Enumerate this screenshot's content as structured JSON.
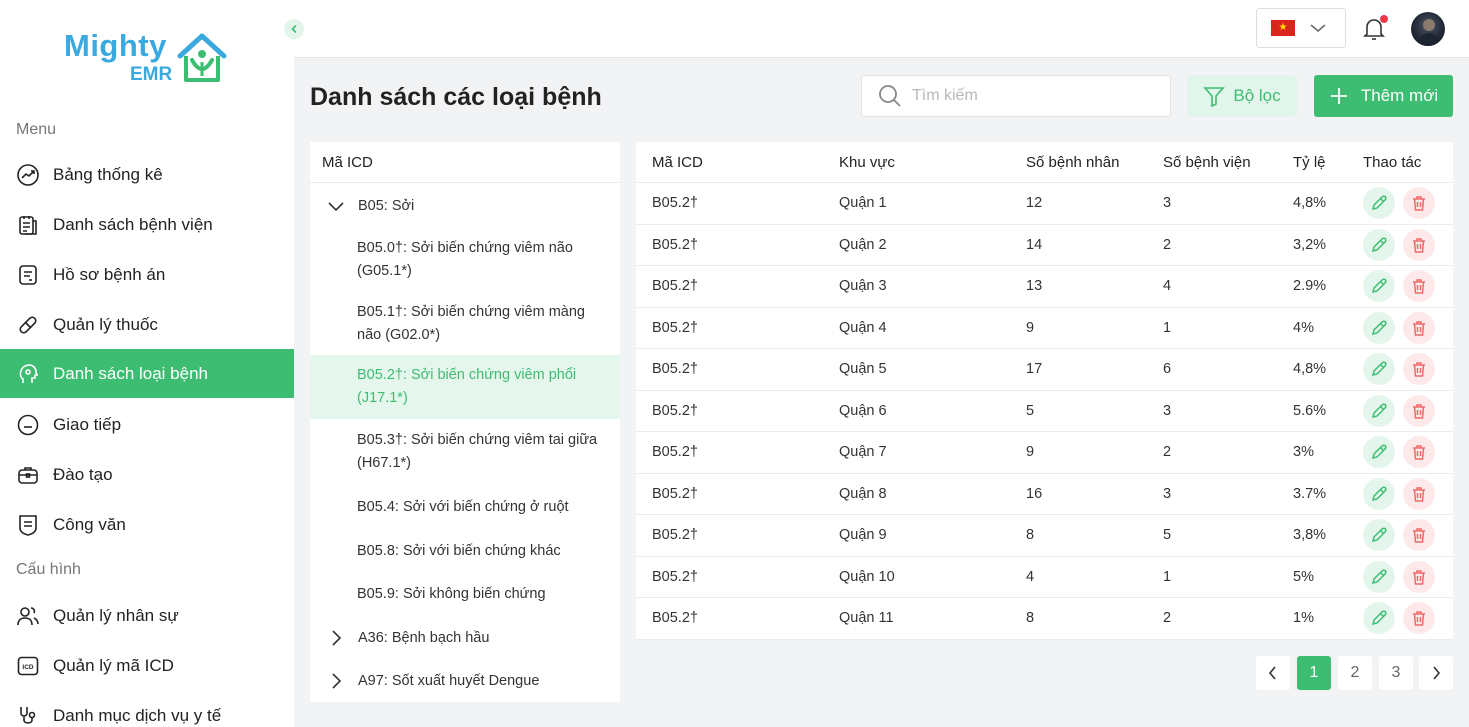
{
  "brand": {
    "name_top": "Mighty",
    "name_bottom": "EMR",
    "primary_color": "#3dbd72",
    "logo_color": "#3aa9e0"
  },
  "sidebar": {
    "menu_label": "Menu",
    "menu_items": [
      {
        "label": "Bảng thống kê",
        "icon": "chart-trend-icon"
      },
      {
        "label": "Danh sách bệnh viện",
        "icon": "hospital-list-icon"
      },
      {
        "label": "Hồ sơ bệnh án",
        "icon": "medical-record-icon"
      },
      {
        "label": "Quản lý thuốc",
        "icon": "pill-icon"
      },
      {
        "label": "Danh sách loại bệnh",
        "icon": "disease-head-icon",
        "active": true
      },
      {
        "label": "Giao tiếp",
        "icon": "chat-icon"
      },
      {
        "label": "Đào tạo",
        "icon": "briefcase-icon"
      },
      {
        "label": "Công văn",
        "icon": "document-shield-icon"
      }
    ],
    "config_label": "Cấu hình",
    "config_items": [
      {
        "label": "Quản lý nhân sự",
        "icon": "users-icon"
      },
      {
        "label": "Quản lý mã ICD",
        "icon": "icd-icon",
        "icon_text": "ICD"
      },
      {
        "label": "Danh mục dịch vụ y tế",
        "icon": "stethoscope-icon"
      }
    ]
  },
  "header": {
    "language_flag_icon": "vietnam-flag-icon",
    "notification_icon": "bell-icon",
    "avatar_icon": "user-avatar-icon"
  },
  "page": {
    "title": "Danh sách các loại bệnh",
    "search_placeholder": "Tìm kiếm",
    "filter_label": "Bộ lọc",
    "add_label": "Thêm mới"
  },
  "tree": {
    "header": "Mã ICD",
    "nodes": [
      {
        "type": "parent",
        "label": "B05: Sởi",
        "expanded": true
      },
      {
        "type": "child",
        "label": "B05.0†: Sởi biến chứng viêm não (G05.1*)"
      },
      {
        "type": "child",
        "label": "B05.1†: Sởi biến chứng viêm màng não (G02.0*)"
      },
      {
        "type": "child",
        "label": "B05.2†: Sởi biến chứng viêm phổi (J17.1*)",
        "selected": true
      },
      {
        "type": "child",
        "label": "B05.3†: Sởi biến chứng viêm tai giữa (H67.1*)"
      },
      {
        "type": "child",
        "label": "B05.4: Sởi với biến chứng ở ruột"
      },
      {
        "type": "child",
        "label": "B05.8: Sởi với biến chứng khác"
      },
      {
        "type": "child",
        "label": "B05.9: Sởi không biến chứng"
      },
      {
        "type": "parent",
        "label": "A36: Bệnh bạch hầu",
        "expanded": false
      },
      {
        "type": "parent",
        "label": "A97: Sốt xuất huyết Dengue",
        "expanded": false
      }
    ]
  },
  "table": {
    "columns": [
      "Mã ICD",
      "Khu vực",
      "Số bệnh nhân",
      "Số bệnh viện",
      "Tỷ lệ",
      "Thao tác"
    ],
    "rows": [
      [
        "B05.2†",
        "Quận 1",
        "12",
        "3",
        "4,8%"
      ],
      [
        "B05.2†",
        "Quận 2",
        "14",
        "2",
        "3,2%"
      ],
      [
        "B05.2†",
        "Quận 3",
        "13",
        "4",
        "2.9%"
      ],
      [
        "B05.2†",
        "Quận 4",
        "9",
        "1",
        "4%"
      ],
      [
        "B05.2†",
        "Quận 5",
        "17",
        "6",
        "4,8%"
      ],
      [
        "B05.2†",
        "Quận 6",
        "5",
        "3",
        "5.6%"
      ],
      [
        "B05.2†",
        "Quận 7",
        "9",
        "2",
        "3%"
      ],
      [
        "B05.2†",
        "Quận 8",
        "16",
        "3",
        "3.7%"
      ],
      [
        "B05.2†",
        "Quận 9",
        "8",
        "5",
        "3,8%"
      ],
      [
        "B05.2†",
        "Quận 10",
        "4",
        "1",
        "5%"
      ],
      [
        "B05.2†",
        "Quận 11",
        "8",
        "2",
        "1%"
      ]
    ],
    "row_actions": [
      "edit-pencil-icon",
      "delete-trash-icon"
    ]
  },
  "pagination": {
    "pages": [
      "1",
      "2",
      "3"
    ],
    "current": "1"
  }
}
